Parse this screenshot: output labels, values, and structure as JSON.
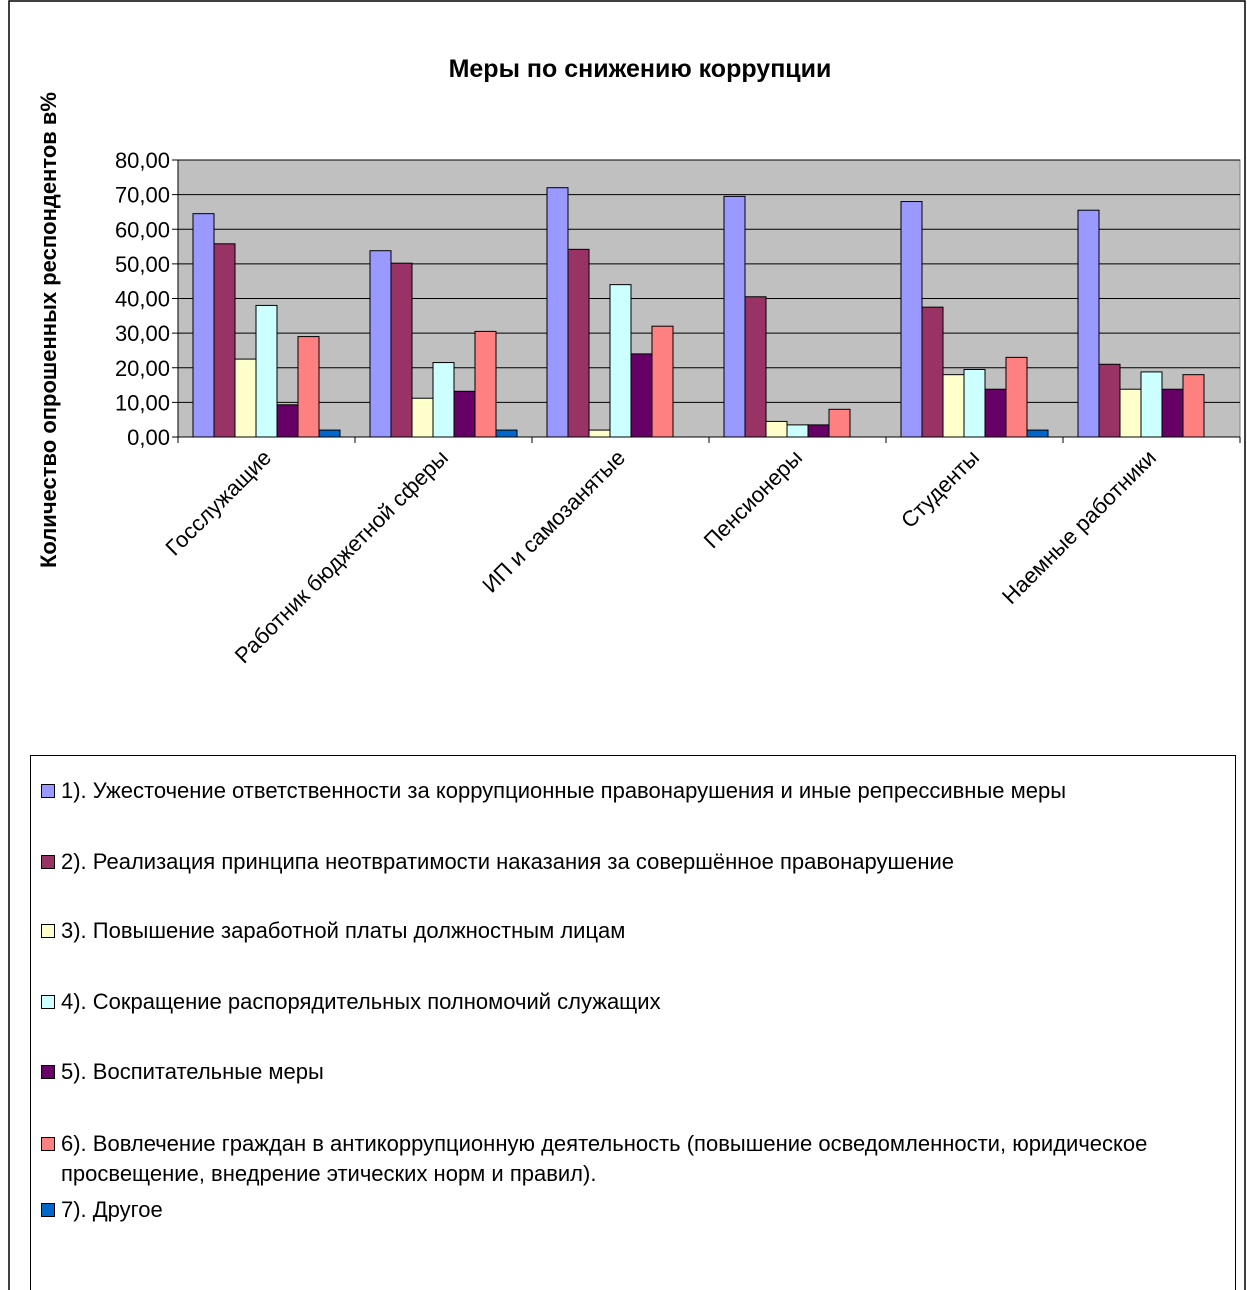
{
  "chart_data": {
    "type": "bar",
    "title": "Меры по снижению коррупции",
    "y_label": "Количество опрошенных респондентов в%",
    "categories": [
      "Госслужащие",
      "Работник бюджетной сферы",
      "ИП и самозанятые",
      "Пенсионеры",
      "Студенты",
      "Наемные работники"
    ],
    "series": [
      {
        "name": "1). Ужесточение ответственности за коррупционные правонарушения и иные репрессивные меры",
        "color": "#9999FF",
        "values": [
          64.5,
          53.8,
          72,
          69.5,
          68,
          65.5
        ]
      },
      {
        "name": "2). Реализация принципа неотвратимости наказания за совершённое правонарушение",
        "color": "#993366",
        "values": [
          55.8,
          50.2,
          54.2,
          40.5,
          37.5,
          21
        ]
      },
      {
        "name": "3). Повышение заработной платы должностным лицам",
        "color": "#FFFFCC",
        "values": [
          22.5,
          11.2,
          2,
          4.5,
          18,
          13.8
        ]
      },
      {
        "name": "4). Сокращение распорядительных полномочий служащих",
        "color": "#CCFFFF",
        "values": [
          38,
          21.5,
          44,
          3.5,
          19.5,
          18.8
        ]
      },
      {
        "name": "5). Воспитательные меры",
        "color": "#660066",
        "values": [
          9.3,
          13.2,
          24,
          3.5,
          13.8,
          13.8
        ]
      },
      {
        "name": "6). Вовлечение граждан в антикоррупционную деятельность (повышение осведомленности, юридическое просвещение, внедрение этических норм и правил).",
        "color": "#FF8080",
        "values": [
          29,
          30.5,
          32,
          8,
          23,
          18
        ]
      },
      {
        "name": "7). Другое",
        "color": "#0066CC",
        "values": [
          2,
          2,
          0,
          0,
          2,
          0
        ]
      }
    ],
    "ylim": [
      0,
      80
    ],
    "yticks": [
      {
        "value": 0,
        "label": "0,00"
      },
      {
        "value": 10,
        "label": "10,00"
      },
      {
        "value": 20,
        "label": "20,00"
      },
      {
        "value": 30,
        "label": "30,00"
      },
      {
        "value": 40,
        "label": "40,00"
      },
      {
        "value": 50,
        "label": "50,00"
      },
      {
        "value": 60,
        "label": "60,00"
      },
      {
        "value": 70,
        "label": "70,00"
      },
      {
        "value": 80,
        "label": "80,00"
      }
    ],
    "grid": true,
    "plot_background": "#C0C0C0",
    "legend": "bottom"
  }
}
